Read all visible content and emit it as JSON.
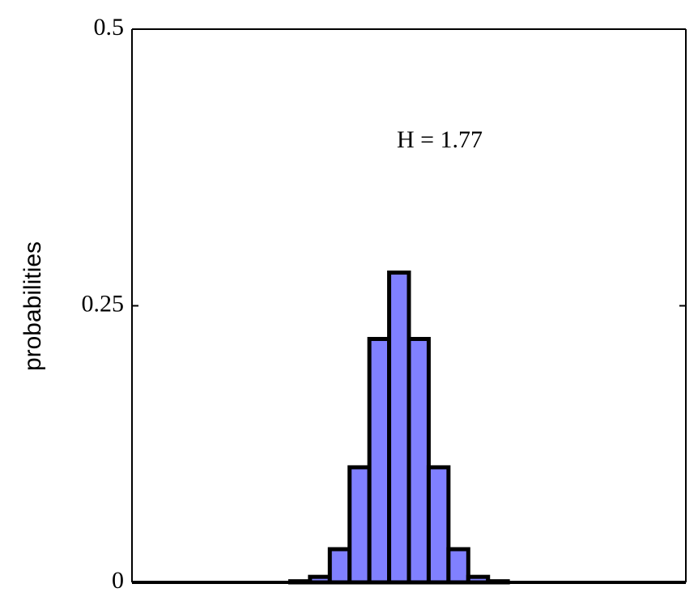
{
  "chart_data": {
    "type": "bar",
    "ylabel": "probabilities",
    "annotation": "H = 1.77",
    "categories": [
      null,
      null,
      null,
      null,
      null,
      null,
      null,
      null,
      null,
      null,
      null,
      null,
      null,
      null,
      null,
      null,
      null,
      null,
      null,
      null,
      null,
      null,
      null,
      null,
      null,
      null,
      null,
      null
    ],
    "values": [
      0,
      0,
      0,
      0,
      0,
      0,
      0,
      0,
      0.001,
      0.005,
      0.03,
      0.104,
      0.22,
      0.28,
      0.22,
      0.104,
      0.03,
      0.005,
      0.001,
      0,
      0,
      0,
      0,
      0,
      0,
      0,
      0,
      0
    ],
    "color": "#8080ff",
    "ylim": [
      0,
      0.5
    ],
    "yticks": [
      0,
      0.25,
      0.5
    ]
  }
}
